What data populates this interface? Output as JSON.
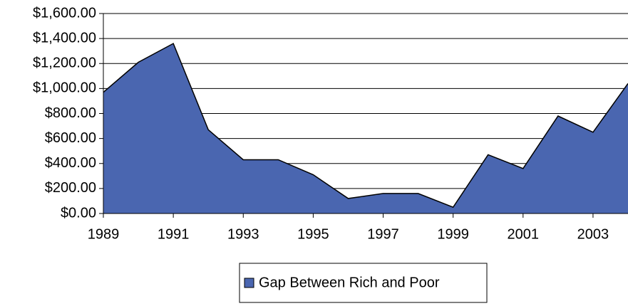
{
  "chart_data": {
    "type": "area",
    "x": [
      1989,
      1990,
      1991,
      1992,
      1993,
      1994,
      1995,
      1996,
      1997,
      1998,
      1999,
      2000,
      2001,
      2002,
      2003,
      2004
    ],
    "series": [
      {
        "name": "Gap Between Rich and Poor",
        "color": "#4a66b0",
        "values": [
          970,
          1210,
          1360,
          670,
          430,
          430,
          310,
          120,
          160,
          160,
          50,
          470,
          360,
          780,
          650,
          1040
        ]
      }
    ],
    "xlim": [
      1989,
      2004
    ],
    "xticks": [
      1989,
      1991,
      1993,
      1995,
      1997,
      1999,
      2001,
      2003
    ],
    "ylim": [
      0,
      1600
    ],
    "yticks": [
      {
        "value": 0,
        "label": "$0.00"
      },
      {
        "value": 200,
        "label": "$200.00"
      },
      {
        "value": 400,
        "label": "$400.00"
      },
      {
        "value": 600,
        "label": "$600.00"
      },
      {
        "value": 800,
        "label": "$800.00"
      },
      {
        "value": 1000,
        "label": "$1,000.00"
      },
      {
        "value": 1200,
        "label": "$1,200.00"
      },
      {
        "value": 1400,
        "label": "$1,400.00"
      },
      {
        "value": 1600,
        "label": "$1,600.00"
      }
    ],
    "grid": true,
    "legend": "bottom"
  }
}
